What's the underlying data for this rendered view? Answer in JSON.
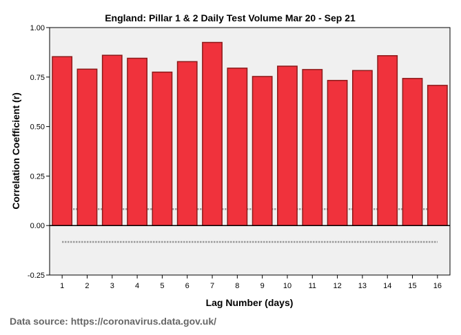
{
  "chart_data": {
    "type": "bar",
    "title": "England: Pillar 1 & 2 Daily Test Volume Mar 20 - Sep 21",
    "xlabel": "Lag Number (days)",
    "ylabel": "Correlation Coefficient (r)",
    "categories": [
      "1",
      "2",
      "3",
      "4",
      "5",
      "6",
      "7",
      "8",
      "9",
      "10",
      "11",
      "12",
      "13",
      "14",
      "15",
      "16"
    ],
    "values": [
      0.853,
      0.79,
      0.86,
      0.845,
      0.775,
      0.828,
      0.925,
      0.795,
      0.753,
      0.805,
      0.788,
      0.733,
      0.783,
      0.858,
      0.743,
      0.708
    ],
    "ylim": [
      -0.25,
      1.0
    ],
    "yticks": [
      "1.00",
      "0.75",
      "0.50",
      "0.25",
      "0.00",
      "-0.25"
    ],
    "ytick_values": [
      1.0,
      0.75,
      0.5,
      0.25,
      0.0,
      -0.25
    ],
    "confidence_limits": [
      0.083,
      -0.083
    ],
    "colors": {
      "bar_fill": "#f0323c",
      "bar_stroke": "#8b1a1a",
      "plot_background": "#f0f0f0",
      "confidence_line": "#999999"
    }
  },
  "footer": {
    "source": "Data source: https://coronavirus.data.gov.uk/"
  }
}
